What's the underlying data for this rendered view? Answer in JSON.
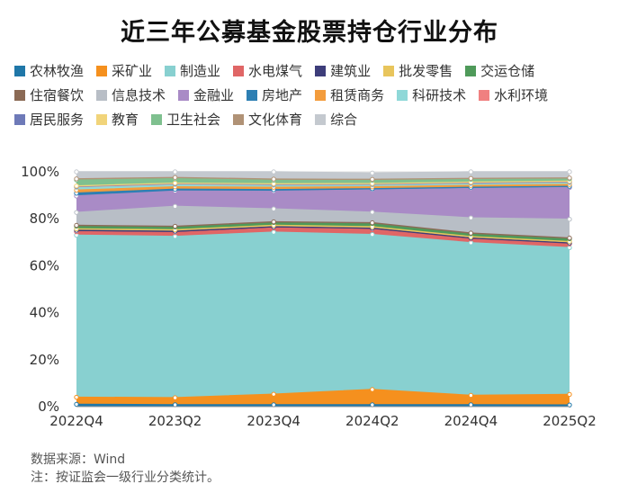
{
  "title": "近三年公募基金股票持仓行业分布",
  "watermark": "Win.d",
  "source_note": "数据来源：Wind",
  "method_note": "注：按证监会一级行业分类统计。",
  "chart_data": {
    "type": "area",
    "stacked": true,
    "title": "近三年公募基金股票持仓行业分布",
    "xlabel": "",
    "ylabel": "",
    "ylim": [
      0,
      100
    ],
    "yticks": [
      "0%",
      "20%",
      "40%",
      "60%",
      "80%",
      "100%"
    ],
    "grid": "horizontal",
    "legend_position": "top",
    "categories": [
      "2022Q4",
      "2023Q2",
      "2023Q4",
      "2024Q2",
      "2024Q4",
      "2025Q2"
    ],
    "series": [
      {
        "name": "农林牧渔",
        "color": "#1f77a8",
        "values": [
          1.0,
          0.8,
          0.8,
          0.8,
          0.8,
          0.7
        ]
      },
      {
        "name": "采矿业",
        "color": "#f5901e",
        "values": [
          3.0,
          3.0,
          4.5,
          6.5,
          4.0,
          4.5
        ]
      },
      {
        "name": "制造业",
        "color": "#88d0d0",
        "values": [
          69.0,
          68.7,
          69.0,
          66.0,
          65.0,
          62.5
        ]
      },
      {
        "name": "水电煤气",
        "color": "#e06666",
        "values": [
          1.5,
          1.6,
          1.8,
          2.2,
          1.6,
          1.6
        ]
      },
      {
        "name": "建筑业",
        "color": "#3d3d7a",
        "values": [
          0.6,
          0.6,
          0.5,
          0.5,
          0.4,
          0.4
        ]
      },
      {
        "name": "批发零售",
        "color": "#e8c55c",
        "values": [
          0.6,
          0.6,
          0.6,
          0.6,
          0.6,
          0.6
        ]
      },
      {
        "name": "交运仓储",
        "color": "#4f9a5a",
        "values": [
          1.2,
          1.2,
          1.2,
          1.4,
          1.2,
          1.2
        ]
      },
      {
        "name": "住宿餐饮",
        "color": "#8b6a55",
        "values": [
          0.3,
          0.3,
          0.3,
          0.3,
          0.3,
          0.3
        ]
      },
      {
        "name": "信息技术",
        "color": "#b8bec6",
        "values": [
          5.5,
          8.5,
          5.5,
          4.5,
          6.5,
          8.0
        ]
      },
      {
        "name": "金融业",
        "color": "#a98bc6",
        "values": [
          7.0,
          6.5,
          7.5,
          9.5,
          12.5,
          13.5
        ]
      },
      {
        "name": "房地产",
        "color": "#2d7fb3",
        "values": [
          1.2,
          0.8,
          0.7,
          0.5,
          0.5,
          0.5
        ]
      },
      {
        "name": "租赁商务",
        "color": "#f39c3c",
        "values": [
          1.3,
          1.0,
          1.0,
          0.8,
          0.8,
          0.8
        ]
      },
      {
        "name": "科研技术",
        "color": "#8fd8d8",
        "values": [
          1.2,
          1.0,
          0.9,
          0.8,
          0.8,
          0.8
        ]
      },
      {
        "name": "水利环境",
        "color": "#f08080",
        "values": [
          0.3,
          0.3,
          0.3,
          0.3,
          0.3,
          0.3
        ]
      },
      {
        "name": "居民服务",
        "color": "#6e7ab8",
        "values": [
          0.1,
          0.1,
          0.1,
          0.1,
          0.1,
          0.1
        ]
      },
      {
        "name": "教育",
        "color": "#f1d47a",
        "values": [
          0.2,
          0.2,
          0.2,
          0.2,
          0.2,
          0.2
        ]
      },
      {
        "name": "卫生社会",
        "color": "#7fc08f",
        "values": [
          2.5,
          1.9,
          1.5,
          1.4,
          1.2,
          1.0
        ]
      },
      {
        "name": "文化体育",
        "color": "#b09276",
        "values": [
          0.5,
          0.5,
          0.5,
          0.4,
          0.4,
          0.4
        ]
      },
      {
        "name": "综合",
        "color": "#c4c9cf",
        "values": [
          3.0,
          2.4,
          3.1,
          2.7,
          2.8,
          2.6
        ]
      }
    ]
  }
}
